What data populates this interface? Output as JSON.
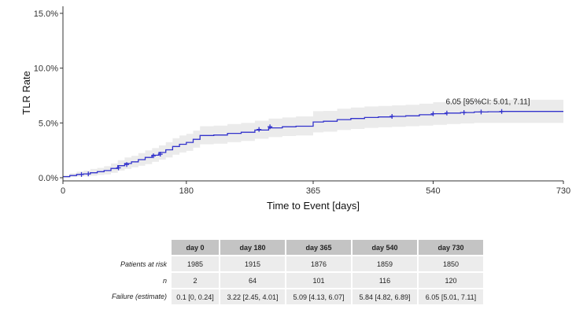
{
  "chart_data": {
    "type": "line",
    "title": "",
    "xlabel": "Time to Event [days]",
    "ylabel": "TLR Rate",
    "xlim": [
      0,
      730
    ],
    "ylim": [
      0,
      15.5
    ],
    "x_ticks": [
      0,
      180,
      365,
      540,
      730
    ],
    "x_tick_labels": [
      "0",
      "180",
      "365",
      "540",
      "730"
    ],
    "y_ticks": [
      0,
      5,
      10,
      15
    ],
    "y_tick_labels": [
      "0.0%",
      "5.0%",
      "10.0%",
      "15.0%"
    ],
    "grid": false,
    "legend": "none",
    "colors": {
      "line": "#3333cc",
      "ci_band": "#ebebeb",
      "censor": "#3333cc"
    },
    "series": [
      {
        "x": [
          0,
          10,
          20,
          30,
          40,
          50,
          60,
          70,
          80,
          90,
          100,
          110,
          120,
          130,
          140,
          150,
          160,
          170,
          180,
          190,
          200,
          220,
          240,
          260,
          280,
          300,
          320,
          340,
          365,
          380,
          400,
          420,
          440,
          460,
          480,
          500,
          520,
          540,
          560,
          580,
          600,
          620,
          640,
          660,
          680,
          700,
          730
        ],
        "y": [
          0.1,
          0.2,
          0.3,
          0.35,
          0.45,
          0.55,
          0.65,
          0.85,
          1.1,
          1.3,
          1.45,
          1.65,
          1.85,
          2.05,
          2.3,
          2.55,
          2.85,
          3.05,
          3.22,
          3.5,
          3.85,
          3.9,
          4.05,
          4.15,
          4.35,
          4.55,
          4.65,
          4.7,
          5.09,
          5.15,
          5.3,
          5.4,
          5.5,
          5.55,
          5.6,
          5.65,
          5.75,
          5.84,
          5.9,
          5.95,
          6.0,
          6.02,
          6.05,
          6.05,
          6.05,
          6.05,
          6.05
        ],
        "ci_lower": [
          0,
          0.05,
          0.1,
          0.12,
          0.18,
          0.25,
          0.3,
          0.45,
          0.65,
          0.8,
          0.95,
          1.1,
          1.25,
          1.45,
          1.65,
          1.85,
          2.1,
          2.3,
          2.45,
          2.75,
          3.05,
          3.1,
          3.25,
          3.35,
          3.55,
          3.7,
          3.8,
          3.85,
          4.13,
          4.2,
          4.35,
          4.45,
          4.55,
          4.6,
          4.65,
          4.7,
          4.75,
          4.82,
          4.9,
          4.95,
          5.0,
          5.0,
          5.01,
          5.01,
          5.01,
          5.01,
          5.01
        ],
        "ci_upper": [
          0.24,
          0.4,
          0.55,
          0.65,
          0.8,
          0.9,
          1.05,
          1.3,
          1.6,
          1.85,
          2.0,
          2.25,
          2.5,
          2.7,
          2.95,
          3.25,
          3.6,
          3.85,
          4.01,
          4.3,
          4.7,
          4.75,
          4.9,
          5.0,
          5.2,
          5.4,
          5.5,
          5.6,
          6.07,
          6.1,
          6.3,
          6.4,
          6.5,
          6.55,
          6.6,
          6.65,
          6.75,
          6.89,
          6.95,
          7.0,
          7.05,
          7.08,
          7.11,
          7.11,
          7.11,
          7.11,
          7.11
        ],
        "censor_x": [
          27,
          37,
          81,
          93,
          132,
          142,
          286,
          302,
          480,
          540,
          560,
          585,
          610,
          640
        ],
        "censor_y": [
          0.3,
          0.35,
          0.9,
          1.2,
          2.0,
          2.15,
          4.4,
          4.65,
          5.6,
          5.84,
          5.9,
          5.95,
          6.0,
          6.05
        ]
      }
    ],
    "annotation": {
      "x": 540,
      "y": 6.05,
      "text": "6.05 [95%CI: 5.01, 7.11]"
    }
  },
  "risk_table": {
    "columns": [
      "day 0",
      "day 180",
      "day 365",
      "day 540",
      "day 730"
    ],
    "rows": [
      {
        "label": "Patients at risk",
        "values": [
          "1985",
          "1915",
          "1876",
          "1859",
          "1850"
        ]
      },
      {
        "label": "n",
        "values": [
          "2",
          "64",
          "101",
          "116",
          "120"
        ]
      },
      {
        "label": "Failure (estimate)",
        "values": [
          "0.1 [0, 0.24]",
          "3.22 [2.45, 4.01]",
          "5.09 [4.13, 6.07]",
          "5.84 [4.82, 6.89]",
          "6.05 [5.01, 7.11]"
        ]
      }
    ]
  }
}
